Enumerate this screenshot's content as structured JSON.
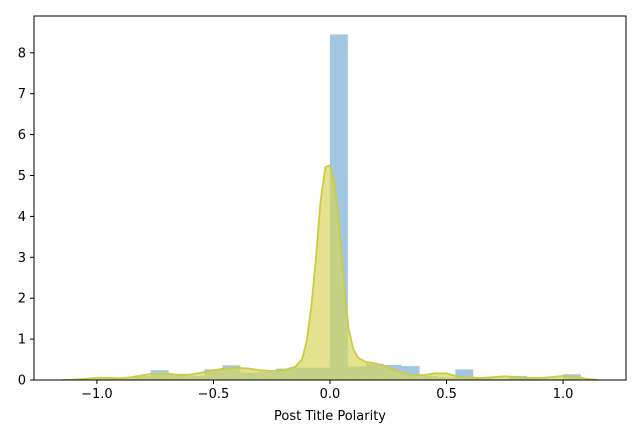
{
  "chart_data": {
    "type": "histogram",
    "xlabel": "Post Title Polarity",
    "ylabel": "",
    "title": "",
    "xlim": [
      -1.27,
      1.27
    ],
    "ylim": [
      0,
      8.9
    ],
    "xticks": [
      -1.0,
      -0.5,
      0.0,
      0.5,
      1.0
    ],
    "xtick_labels": [
      "−1.0",
      "−0.5",
      "0.0",
      "0.5",
      "1.0"
    ],
    "yticks": [
      0,
      1,
      2,
      3,
      4,
      5,
      6,
      7,
      8
    ],
    "ytick_labels": [
      "0",
      "1",
      "2",
      "3",
      "4",
      "5",
      "6",
      "7",
      "8"
    ],
    "grid": false,
    "histogram": {
      "bin_start": -1.0,
      "bin_width": 0.0769,
      "values": [
        0.06,
        0.03,
        0.09,
        0.24,
        0.15,
        0.1,
        0.26,
        0.36,
        0.18,
        0.2,
        0.28,
        0.3,
        0.3,
        8.45,
        0.33,
        0.4,
        0.37,
        0.34,
        0.1,
        0.06,
        0.26,
        0.06,
        0.02,
        0.1,
        0.06,
        0.02,
        0.14
      ],
      "color": "#7fb0d5"
    },
    "kde": {
      "x": [
        -1.15,
        -1.1,
        -1.05,
        -1.0,
        -0.95,
        -0.9,
        -0.85,
        -0.8,
        -0.75,
        -0.7,
        -0.65,
        -0.6,
        -0.55,
        -0.5,
        -0.45,
        -0.4,
        -0.35,
        -0.3,
        -0.25,
        -0.2,
        -0.15,
        -0.12,
        -0.1,
        -0.08,
        -0.06,
        -0.04,
        -0.02,
        0.0,
        0.02,
        0.04,
        0.06,
        0.08,
        0.1,
        0.12,
        0.15,
        0.2,
        0.25,
        0.3,
        0.35,
        0.4,
        0.45,
        0.5,
        0.55,
        0.6,
        0.65,
        0.7,
        0.75,
        0.8,
        0.85,
        0.9,
        0.95,
        1.0,
        1.05,
        1.1,
        1.15
      ],
      "y": [
        0.0,
        0.01,
        0.03,
        0.05,
        0.05,
        0.04,
        0.07,
        0.12,
        0.16,
        0.16,
        0.12,
        0.13,
        0.18,
        0.24,
        0.28,
        0.3,
        0.28,
        0.24,
        0.22,
        0.24,
        0.32,
        0.5,
        0.95,
        1.8,
        3.0,
        4.4,
        5.2,
        5.25,
        4.8,
        3.7,
        2.3,
        1.25,
        0.75,
        0.55,
        0.45,
        0.4,
        0.3,
        0.2,
        0.12,
        0.12,
        0.16,
        0.16,
        0.08,
        0.06,
        0.05,
        0.07,
        0.09,
        0.07,
        0.05,
        0.05,
        0.07,
        0.1,
        0.08,
        0.03,
        0.0
      ],
      "line_color": "#cccc44",
      "fill_color": "#d6d65a"
    }
  }
}
